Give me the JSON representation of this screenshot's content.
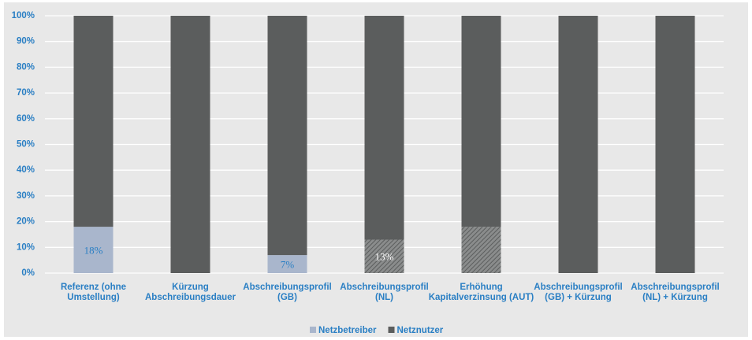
{
  "chart_data": {
    "type": "stacked_bar",
    "categories": [
      [
        "Referenz (ohne",
        "Umstellung)"
      ],
      [
        "Kürzung",
        "Abschreibungsdauer"
      ],
      [
        "Abschreibungsprofil",
        "(GB)"
      ],
      [
        "Abschreibungsprofil",
        "(NL)"
      ],
      [
        "Erhöhung",
        "Kapitalverzinsung (AUT)"
      ],
      [
        "Abschreibungsprofil",
        "(GB) + Kürzung"
      ],
      [
        "Abschreibungsprofil",
        "(NL) + Kürzung"
      ]
    ],
    "series": [
      {
        "name": "Netzbetreiber",
        "color": "#a9b6cc",
        "hatched": [
          false,
          false,
          false,
          true,
          true,
          false,
          false
        ],
        "values": [
          18,
          0,
          7,
          13,
          18,
          0,
          0
        ],
        "value_labels": [
          "18%",
          null,
          "7%",
          "13%",
          null,
          null,
          null
        ]
      },
      {
        "name": "Netznutzer",
        "color": "#5b5d5d",
        "values": [
          82,
          100,
          93,
          87,
          82,
          100,
          100
        ]
      }
    ],
    "ylim": [
      0,
      100
    ],
    "yticks": [
      {
        "value": 0,
        "label": "0%"
      },
      {
        "value": 10,
        "label": "10%"
      },
      {
        "value": 20,
        "label": "20%"
      },
      {
        "value": 30,
        "label": "30%"
      },
      {
        "value": 40,
        "label": "40%"
      },
      {
        "value": 50,
        "label": "50%"
      },
      {
        "value": 60,
        "label": "60%"
      },
      {
        "value": 70,
        "label": "70%"
      },
      {
        "value": 80,
        "label": "80%"
      },
      {
        "value": 90,
        "label": "90%"
      },
      {
        "value": 100,
        "label": "100%"
      }
    ],
    "grid": true,
    "legend": "bottom"
  }
}
